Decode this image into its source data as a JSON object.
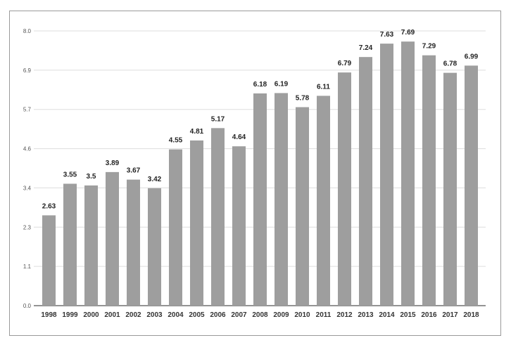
{
  "chart_data": {
    "type": "bar",
    "categories": [
      "1998",
      "1999",
      "2000",
      "2001",
      "2002",
      "2003",
      "2004",
      "2005",
      "2006",
      "2007",
      "2008",
      "2009",
      "2010",
      "2011",
      "2012",
      "2013",
      "2014",
      "2015",
      "2016",
      "2017",
      "2018"
    ],
    "values": [
      2.63,
      3.55,
      3.5,
      3.89,
      3.67,
      3.42,
      4.55,
      4.81,
      5.17,
      4.64,
      6.18,
      6.19,
      5.78,
      6.11,
      6.79,
      7.24,
      7.63,
      7.69,
      7.29,
      6.78,
      6.99
    ],
    "value_labels": [
      "2.63",
      "3.55",
      "3.5",
      "3.89",
      "3.67",
      "3.42",
      "4.55",
      "4.81",
      "5.17",
      "4.64",
      "6.18",
      "6.19",
      "5.78",
      "6.11",
      "6.79",
      "7.24",
      "7.63",
      "7.69",
      "7.29",
      "6.78",
      "6.99"
    ],
    "y_ticks": [
      "0.0",
      "1.1",
      "2.3",
      "3.4",
      "4.6",
      "5.7",
      "6.9",
      "8.0"
    ],
    "ylim": [
      0,
      8
    ],
    "title": "",
    "xlabel": "",
    "ylabel": "",
    "grid": true,
    "legend": "none",
    "bar_color": "#9e9e9e"
  }
}
